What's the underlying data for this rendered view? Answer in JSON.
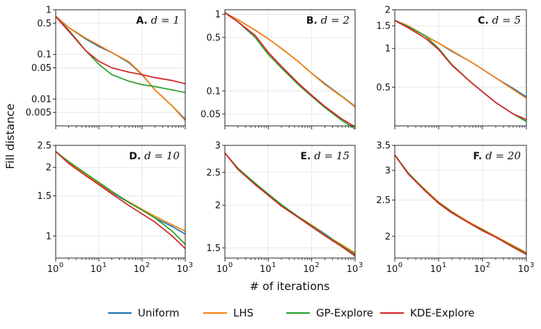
{
  "figure": {
    "ylabel": "Fill distance",
    "xlabel": "# of iterations"
  },
  "colors": {
    "Uniform": "#1f77b4",
    "LHS": "#ff7f0e",
    "GP-Explore": "#2ca02c",
    "KDE-Explore": "#d62728",
    "grid": "#e6e6e6",
    "axis": "#222222"
  },
  "legend": {
    "placement": "bottom-center",
    "entries": [
      "Uniform",
      "LHS",
      "GP-Explore",
      "KDE-Explore"
    ]
  },
  "chart_data": [
    {
      "type": "line",
      "panel": "A.",
      "title_math": "d = 1",
      "xscale": "log",
      "yscale": "log",
      "xlim": [
        1,
        1000
      ],
      "ylim": [
        0.0025,
        1
      ],
      "xticks": [
        "10^0",
        "10^1",
        "10^2",
        "10^3"
      ],
      "yticks": [
        {
          "v": 1,
          "label": "1"
        },
        {
          "v": 0.5,
          "label": "0.5"
        },
        {
          "v": 0.1,
          "label": "0.1"
        },
        {
          "v": 0.05,
          "label": "0.05"
        },
        {
          "v": 0.01,
          "label": "0.01"
        },
        {
          "v": 0.005,
          "label": "0.005"
        }
      ],
      "x": [
        1,
        2,
        5,
        10,
        20,
        50,
        100,
        200,
        500,
        1000
      ],
      "series": [
        {
          "name": "Uniform",
          "values": [
            0.7,
            0.4,
            0.22,
            0.15,
            0.11,
            0.065,
            0.035,
            0.016,
            0.007,
            0.0035
          ]
        },
        {
          "name": "LHS",
          "values": [
            0.72,
            0.4,
            0.23,
            0.16,
            0.11,
            0.068,
            0.036,
            0.016,
            0.007,
            0.0033
          ]
        },
        {
          "name": "GP-Explore",
          "values": [
            0.7,
            0.35,
            0.12,
            0.06,
            0.035,
            0.025,
            0.021,
            0.019,
            0.016,
            0.014
          ]
        },
        {
          "name": "KDE-Explore",
          "values": [
            0.7,
            0.33,
            0.12,
            0.07,
            0.05,
            0.04,
            0.035,
            0.03,
            0.026,
            0.022
          ]
        }
      ]
    },
    {
      "type": "line",
      "panel": "B.",
      "title_math": "d = 2",
      "xscale": "log",
      "yscale": "log",
      "xlim": [
        1,
        1000
      ],
      "ylim": [
        0.035,
        1.15
      ],
      "xticks": [
        "10^0",
        "10^1",
        "10^2",
        "10^3"
      ],
      "yticks": [
        {
          "v": 1,
          "label": "1"
        },
        {
          "v": 0.5,
          "label": "0.5"
        },
        {
          "v": 0.1,
          "label": "0.1"
        },
        {
          "v": 0.05,
          "label": "0.05"
        }
      ],
      "x": [
        1,
        2,
        5,
        10,
        20,
        50,
        100,
        200,
        500,
        1000
      ],
      "series": [
        {
          "name": "Uniform",
          "values": [
            1.05,
            0.85,
            0.62,
            0.48,
            0.36,
            0.24,
            0.17,
            0.125,
            0.085,
            0.063
          ]
        },
        {
          "name": "LHS",
          "values": [
            1.05,
            0.85,
            0.62,
            0.48,
            0.36,
            0.24,
            0.17,
            0.122,
            0.084,
            0.062
          ]
        },
        {
          "name": "GP-Explore",
          "values": [
            1.05,
            0.8,
            0.5,
            0.3,
            0.2,
            0.12,
            0.085,
            0.061,
            0.041,
            0.032
          ]
        },
        {
          "name": "KDE-Explore",
          "values": [
            1.05,
            0.8,
            0.53,
            0.32,
            0.21,
            0.125,
            0.088,
            0.063,
            0.043,
            0.034
          ]
        }
      ]
    },
    {
      "type": "line",
      "panel": "C.",
      "title_math": "d = 5",
      "xscale": "log",
      "yscale": "log",
      "xlim": [
        1,
        1000
      ],
      "ylim": [
        0.25,
        2.0
      ],
      "xticks": [
        "10^0",
        "10^1",
        "10^2",
        "10^3"
      ],
      "yticks": [
        {
          "v": 2,
          "label": "2"
        },
        {
          "v": 1.5,
          "label": "1.5"
        },
        {
          "v": 1,
          "label": "1"
        },
        {
          "v": 0.5,
          "label": "0.5"
        }
      ],
      "x": [
        1,
        2,
        5,
        10,
        20,
        50,
        100,
        200,
        500,
        1000
      ],
      "series": [
        {
          "name": "Uniform",
          "values": [
            1.65,
            1.5,
            1.25,
            1.1,
            0.95,
            0.8,
            0.69,
            0.59,
            0.49,
            0.42
          ]
        },
        {
          "name": "LHS",
          "values": [
            1.65,
            1.5,
            1.25,
            1.1,
            0.96,
            0.8,
            0.69,
            0.59,
            0.48,
            0.41
          ]
        },
        {
          "name": "GP-Explore",
          "values": [
            1.65,
            1.48,
            1.25,
            1.0,
            0.75,
            0.56,
            0.46,
            0.38,
            0.31,
            0.27
          ]
        },
        {
          "name": "KDE-Explore",
          "values": [
            1.65,
            1.45,
            1.2,
            0.98,
            0.74,
            0.56,
            0.46,
            0.38,
            0.31,
            0.28
          ]
        }
      ]
    },
    {
      "type": "line",
      "panel": "D.",
      "title_math": "d = 10",
      "xscale": "log",
      "yscale": "log",
      "xlim": [
        1,
        1000
      ],
      "ylim": [
        0.8,
        2.5
      ],
      "xticks": [
        "10^0",
        "10^1",
        "10^2",
        "10^3"
      ],
      "yticks": [
        {
          "v": 2.5,
          "label": "2.5"
        },
        {
          "v": 2,
          "label": "2"
        },
        {
          "v": 1.5,
          "label": "1.5"
        },
        {
          "v": 1,
          "label": "1"
        }
      ],
      "x": [
        1,
        2,
        5,
        10,
        20,
        50,
        100,
        200,
        500,
        1000
      ],
      "series": [
        {
          "name": "Uniform",
          "values": [
            2.35,
            2.1,
            1.85,
            1.7,
            1.55,
            1.4,
            1.3,
            1.2,
            1.1,
            1.02
          ]
        },
        {
          "name": "LHS",
          "values": [
            2.35,
            2.1,
            1.85,
            1.71,
            1.56,
            1.41,
            1.31,
            1.22,
            1.12,
            1.05
          ]
        },
        {
          "name": "GP-Explore",
          "values": [
            2.35,
            2.12,
            1.88,
            1.72,
            1.57,
            1.4,
            1.3,
            1.2,
            1.05,
            0.92
          ]
        },
        {
          "name": "KDE-Explore",
          "values": [
            2.35,
            2.08,
            1.84,
            1.68,
            1.53,
            1.36,
            1.25,
            1.15,
            1.0,
            0.88
          ]
        }
      ]
    },
    {
      "type": "line",
      "panel": "E.",
      "title_math": "d = 15",
      "xscale": "log",
      "yscale": "log",
      "xlim": [
        1,
        1000
      ],
      "ylim": [
        1.4,
        3.0
      ],
      "xticks": [
        "10^0",
        "10^1",
        "10^2",
        "10^3"
      ],
      "yticks": [
        {
          "v": 3,
          "label": "3"
        },
        {
          "v": 2.5,
          "label": "2.5"
        },
        {
          "v": 2,
          "label": "2"
        },
        {
          "v": 1.5,
          "label": "1.5"
        }
      ],
      "x": [
        1,
        2,
        5,
        10,
        20,
        50,
        100,
        200,
        500,
        1000
      ],
      "series": [
        {
          "name": "Uniform",
          "values": [
            2.85,
            2.55,
            2.3,
            2.15,
            2.0,
            1.85,
            1.75,
            1.65,
            1.52,
            1.44
          ]
        },
        {
          "name": "LHS",
          "values": [
            2.85,
            2.55,
            2.3,
            2.15,
            2.0,
            1.85,
            1.75,
            1.64,
            1.53,
            1.45
          ]
        },
        {
          "name": "GP-Explore",
          "values": [
            2.85,
            2.57,
            2.32,
            2.16,
            2.01,
            1.85,
            1.74,
            1.64,
            1.52,
            1.43
          ]
        },
        {
          "name": "KDE-Explore",
          "values": [
            2.85,
            2.55,
            2.3,
            2.14,
            1.99,
            1.84,
            1.73,
            1.63,
            1.51,
            1.42
          ]
        }
      ]
    },
    {
      "type": "line",
      "panel": "F.",
      "title_math": "d = 20",
      "xscale": "log",
      "yscale": "log",
      "xlim": [
        1,
        1000
      ],
      "ylim": [
        1.75,
        3.5
      ],
      "xticks": [
        "10^0",
        "10^1",
        "10^2",
        "10^3"
      ],
      "yticks": [
        {
          "v": 3.5,
          "label": "3.5"
        },
        {
          "v": 3,
          "label": "3"
        },
        {
          "v": 2.5,
          "label": "2.5"
        },
        {
          "v": 2,
          "label": "2"
        }
      ],
      "x": [
        1,
        2,
        5,
        10,
        20,
        50,
        100,
        200,
        500,
        1000
      ],
      "series": [
        {
          "name": "Uniform",
          "values": [
            3.3,
            2.95,
            2.65,
            2.45,
            2.32,
            2.18,
            2.08,
            2.0,
            1.88,
            1.8
          ]
        },
        {
          "name": "LHS",
          "values": [
            3.3,
            2.95,
            2.66,
            2.47,
            2.33,
            2.18,
            2.09,
            2.0,
            1.89,
            1.81
          ]
        },
        {
          "name": "GP-Explore",
          "values": [
            3.3,
            2.96,
            2.65,
            2.46,
            2.32,
            2.17,
            2.08,
            1.99,
            1.88,
            1.8
          ]
        },
        {
          "name": "KDE-Explore",
          "values": [
            3.3,
            2.94,
            2.64,
            2.45,
            2.31,
            2.17,
            2.07,
            1.99,
            1.87,
            1.79
          ]
        }
      ]
    }
  ]
}
